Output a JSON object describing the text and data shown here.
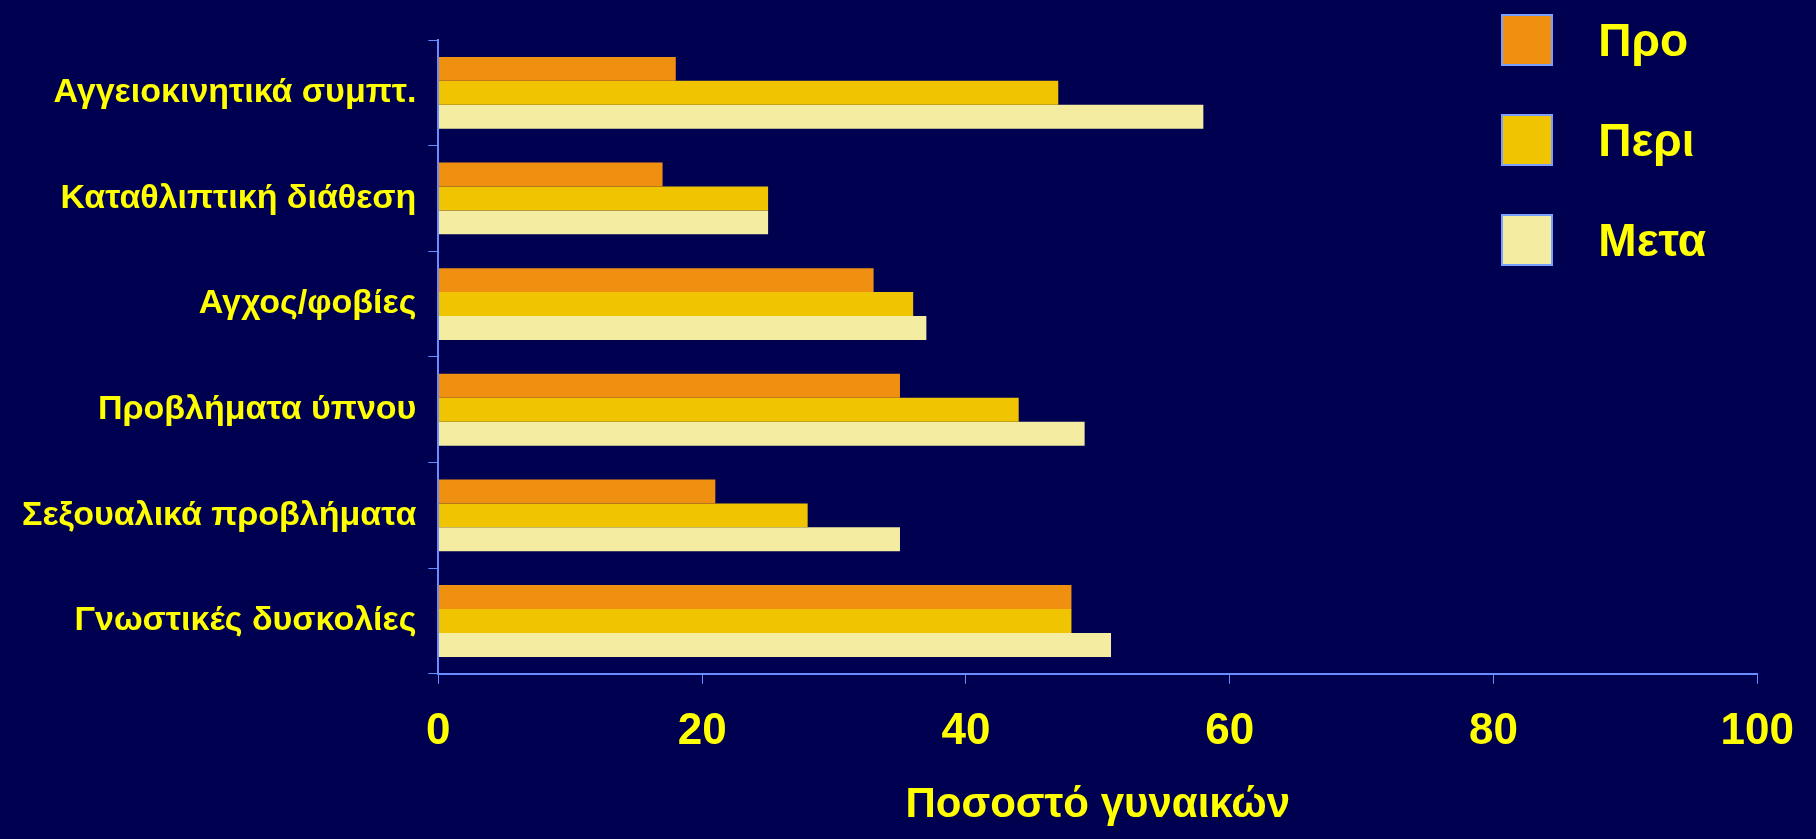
{
  "chart_data": {
    "type": "bar",
    "orientation": "horizontal",
    "xlabel": "Ποσοστό γυναικών",
    "categories": [
      "Αγγειοκινητικά συμπτ.",
      "Καταθλιπτική διάθεση",
      "Αγχος/φοβίες",
      "Προβλήματα ύπνου",
      "Σεξουαλικά προβλήματα",
      "Γνωστικές δυσκολίες"
    ],
    "series": [
      {
        "name": "Προ",
        "color": "#f09010",
        "values": [
          18,
          17,
          33,
          35,
          21,
          48
        ]
      },
      {
        "name": "Περι",
        "color": "#f0c400",
        "values": [
          47,
          25,
          36,
          44,
          28,
          48
        ]
      },
      {
        "name": "Μετα",
        "color": "#f4eca0",
        "values": [
          58,
          25,
          37,
          49,
          35,
          51
        ]
      }
    ],
    "xlim": [
      0,
      100
    ],
    "xticks": [
      0,
      20,
      40,
      60,
      80,
      100
    ],
    "grid": false,
    "legend": "top right"
  }
}
